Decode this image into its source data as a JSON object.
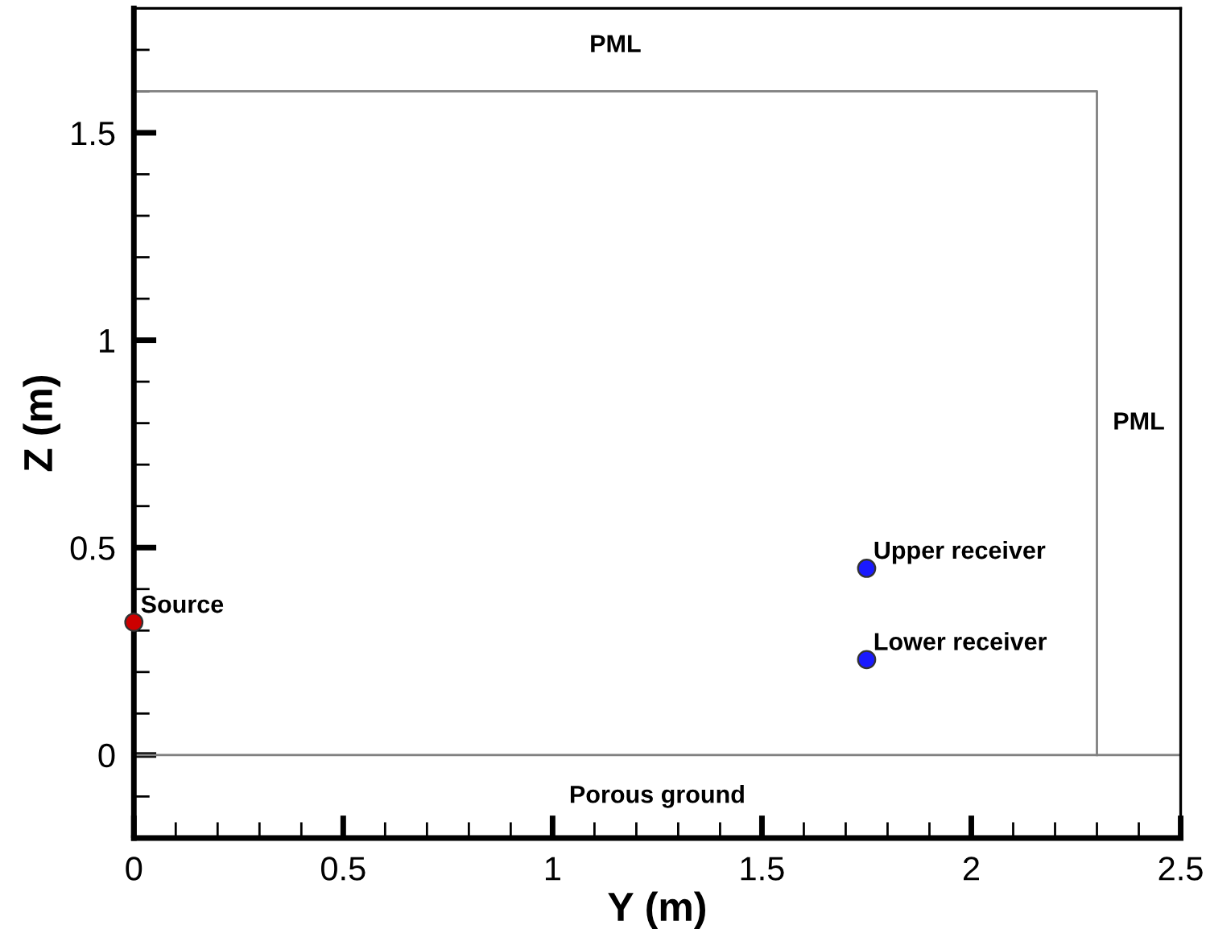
{
  "chart_data": {
    "type": "scatter",
    "xlabel": "Y (m)",
    "ylabel": "Z (m)",
    "xlim": [
      0,
      2.5
    ],
    "ylim": [
      -0.2,
      1.8
    ],
    "xticks": [
      0,
      0.5,
      1,
      1.5,
      2,
      2.5
    ],
    "yticks": [
      0,
      0.5,
      1,
      1.5
    ],
    "grid": false,
    "legend": false,
    "marker": "circle",
    "series": [
      {
        "name": "Source",
        "color": "#cc0000",
        "x": [
          0
        ],
        "values": [
          0.32
        ]
      },
      {
        "name": "Upper receiver",
        "color": "#1a1aff",
        "x": [
          1.75
        ],
        "values": [
          0.45
        ]
      },
      {
        "name": "Lower receiver",
        "color": "#1a1aff",
        "x": [
          1.75
        ],
        "values": [
          0.23
        ]
      },
      {
        "type": "line",
        "color": "#808080",
        "marker": "none",
        "x": [
          0,
          2.3,
          2.3
        ],
        "values": [
          1.6,
          1.6,
          0
        ]
      }
    ],
    "ref_lines": [
      {
        "axis": "y",
        "value": 0,
        "color": "#808080"
      }
    ],
    "annotations": [
      "PML",
      "PML",
      "Porous ground"
    ]
  }
}
